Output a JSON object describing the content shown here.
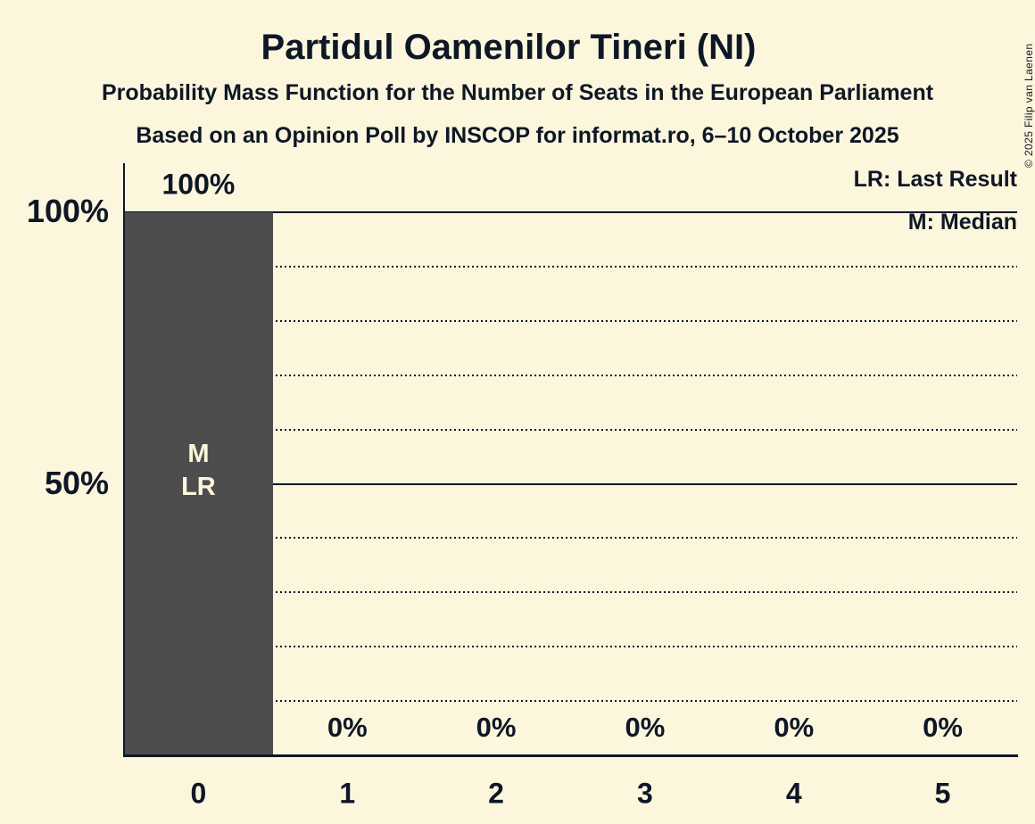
{
  "chart_data": {
    "type": "bar",
    "title": "Partidul Oamenilor Tineri (NI)",
    "subtitle": "Probability Mass Function for the Number of Seats in the European Parliament",
    "note": "Based on an Opinion Poll by INSCOP for informat.ro, 6–10 October 2025",
    "copyright": "© 2025 Filip van Laenen",
    "categories": [
      "0",
      "1",
      "2",
      "3",
      "4",
      "5"
    ],
    "values": [
      100,
      0,
      0,
      0,
      0,
      0
    ],
    "value_labels": [
      "100%",
      "0%",
      "0%",
      "0%",
      "0%",
      "0%"
    ],
    "xlabel": "",
    "ylabel": "",
    "ylim": [
      0,
      100
    ],
    "y_axis_ticks": [
      {
        "value": 100,
        "label": "100%"
      },
      {
        "value": 50,
        "label": "50%"
      }
    ],
    "gridlines_solid": [
      100,
      50
    ],
    "gridlines_dotted": [
      90,
      80,
      70,
      60,
      40,
      30,
      20,
      10
    ],
    "legend_position": "top-right",
    "legend": [
      {
        "label": "LR: Last Result"
      },
      {
        "label": "M: Median"
      }
    ],
    "annotations": [
      {
        "category": "0",
        "lines": [
          "M",
          "LR"
        ]
      }
    ],
    "colors": {
      "background": "#fcf6dd",
      "text": "#0e1726",
      "bar": "#4d4d4d",
      "bar_text": "#fcf6dd"
    }
  }
}
